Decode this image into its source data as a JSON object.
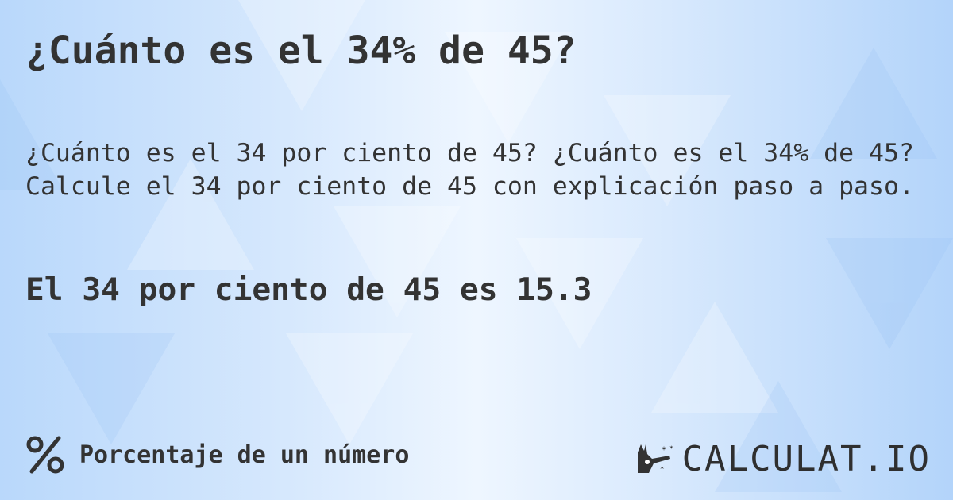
{
  "title": "¿Cuánto es el 34% de 45?",
  "description": "¿Cuánto es el 34 por ciento de 45? ¿Cuánto es el 34% de 45?\nCalcule el 34 por ciento de 45 con explicación paso a paso.",
  "result": "El 34 por ciento de 45 es 15.3",
  "footer": {
    "icon": "percent-icon",
    "label": "Porcentaje de un número"
  },
  "logo": {
    "text": "CALCULAT.IO",
    "icon": "magic-hand-icon"
  },
  "colors": {
    "text": "#333333",
    "background": "#cfe4fc"
  }
}
